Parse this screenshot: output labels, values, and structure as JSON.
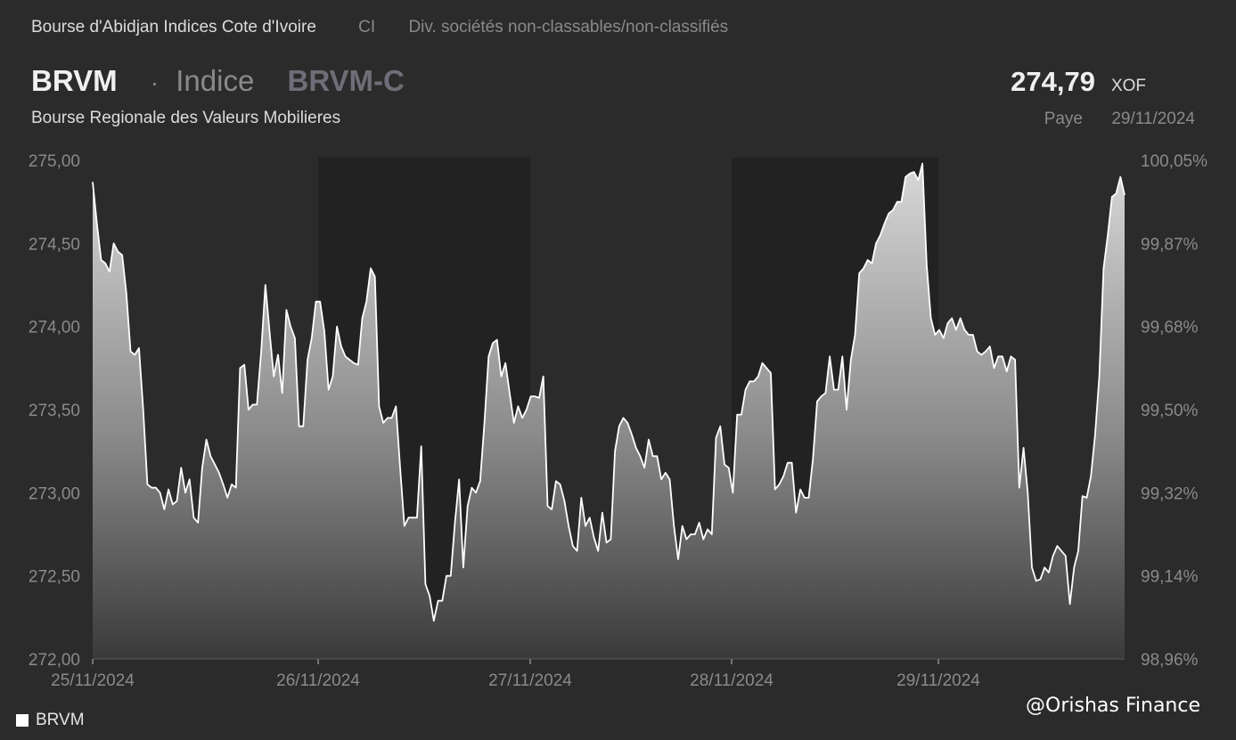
{
  "header": {
    "exchange": "Bourse d'Abidjan Indices Cote d'Ivoire",
    "country": "CI",
    "sector": "Div. sociétés non-classables/non-classifiés",
    "ticker": "BRVM",
    "separator": "·",
    "kind": "Indice",
    "code": "BRVM-C",
    "subtitle": "Bourse Regionale des Valeurs Mobilieres",
    "price": "274,79",
    "currency": "XOF",
    "price_status": "Paye",
    "price_date": "29/11/2024"
  },
  "legend": {
    "label": "BRVM"
  },
  "watermark": "@Orishas Finance",
  "colors": {
    "background": "#2b2b2b",
    "shade": "#222222",
    "line": "#ffffff"
  },
  "chart_data": {
    "type": "area",
    "title": "",
    "xlabel": "",
    "ylabel": "",
    "ylim": [
      272.0,
      275.0
    ],
    "y_ticks": [
      "275,00",
      "274,50",
      "274,00",
      "273,50",
      "273,00",
      "272,50",
      "272,00"
    ],
    "y2_ticks": [
      "100,05%",
      "99,87%",
      "99,68%",
      "99,50%",
      "99,32%",
      "99,14%",
      "98,96%"
    ],
    "x_ticks": [
      "25/11/2024",
      "26/11/2024",
      "27/11/2024",
      "28/11/2024",
      "29/11/2024"
    ],
    "shaded_days": [
      "26/11/2024",
      "28/11/2024"
    ],
    "grid": false,
    "legend_position": "bottom-left",
    "series": [
      {
        "name": "BRVM",
        "values": [
          274.87,
          274.62,
          274.4,
          274.38,
          274.33,
          274.5,
          274.45,
          274.43,
          274.2,
          273.85,
          273.83,
          273.87,
          273.5,
          273.05,
          273.03,
          273.03,
          273.0,
          272.9,
          273.02,
          272.93,
          272.95,
          273.15,
          273.0,
          273.08,
          272.85,
          272.82,
          273.15,
          273.32,
          273.22,
          273.17,
          273.12,
          273.05,
          272.97,
          273.05,
          273.03,
          273.75,
          273.77,
          273.5,
          273.53,
          273.53,
          273.85,
          274.25,
          273.97,
          273.7,
          273.83,
          273.6,
          274.1,
          274.0,
          273.93,
          273.4,
          273.4,
          273.8,
          273.93,
          274.15,
          274.15,
          273.97,
          273.62,
          273.7,
          274.0,
          273.88,
          273.82,
          273.8,
          273.78,
          273.77,
          274.05,
          274.15,
          274.35,
          274.3,
          273.52,
          273.42,
          273.45,
          273.45,
          273.52,
          273.15,
          272.8,
          272.85,
          272.85,
          272.85,
          273.28,
          272.45,
          272.38,
          272.23,
          272.35,
          272.35,
          272.5,
          272.5,
          272.82,
          273.08,
          272.55,
          272.92,
          273.03,
          273.0,
          273.07,
          273.42,
          273.82,
          273.9,
          273.92,
          273.7,
          273.78,
          273.6,
          273.42,
          273.52,
          273.45,
          273.5,
          273.58,
          273.58,
          273.57,
          273.7,
          272.92,
          272.9,
          273.07,
          273.05,
          272.95,
          272.8,
          272.68,
          272.65,
          272.97,
          272.8,
          272.85,
          272.73,
          272.65,
          272.88,
          272.7,
          272.72,
          273.25,
          273.4,
          273.45,
          273.42,
          273.35,
          273.27,
          273.22,
          273.15,
          273.32,
          273.22,
          273.22,
          273.08,
          273.12,
          273.08,
          272.8,
          272.6,
          272.8,
          272.72,
          272.75,
          272.75,
          272.82,
          272.72,
          272.78,
          272.75,
          273.33,
          273.4,
          273.17,
          273.15,
          273.0,
          273.47,
          273.47,
          273.62,
          273.67,
          273.67,
          273.7,
          273.78,
          273.75,
          273.72,
          273.02,
          273.05,
          273.1,
          273.18,
          273.18,
          272.88,
          273.02,
          272.97,
          272.97,
          273.2,
          273.55,
          273.58,
          273.6,
          273.82,
          273.62,
          273.62,
          273.82,
          273.5,
          273.8,
          273.95,
          274.32,
          274.35,
          274.4,
          274.38,
          274.5,
          274.55,
          274.62,
          274.68,
          274.7,
          274.75,
          274.75,
          274.9,
          274.92,
          274.93,
          274.88,
          274.98,
          274.37,
          274.05,
          273.95,
          273.98,
          273.93,
          274.02,
          274.05,
          273.98,
          274.05,
          273.98,
          273.95,
          273.95,
          273.85,
          273.83,
          273.85,
          273.88,
          273.75,
          273.82,
          273.82,
          273.73,
          273.82,
          273.8,
          273.03,
          273.27,
          273.0,
          272.55,
          272.47,
          272.48,
          272.55,
          272.52,
          272.62,
          272.68,
          272.65,
          272.62,
          272.33,
          272.55,
          272.65,
          272.98,
          272.97,
          273.1,
          273.35,
          273.7,
          274.35,
          274.55,
          274.78,
          274.8,
          274.9,
          274.79
        ]
      }
    ]
  }
}
